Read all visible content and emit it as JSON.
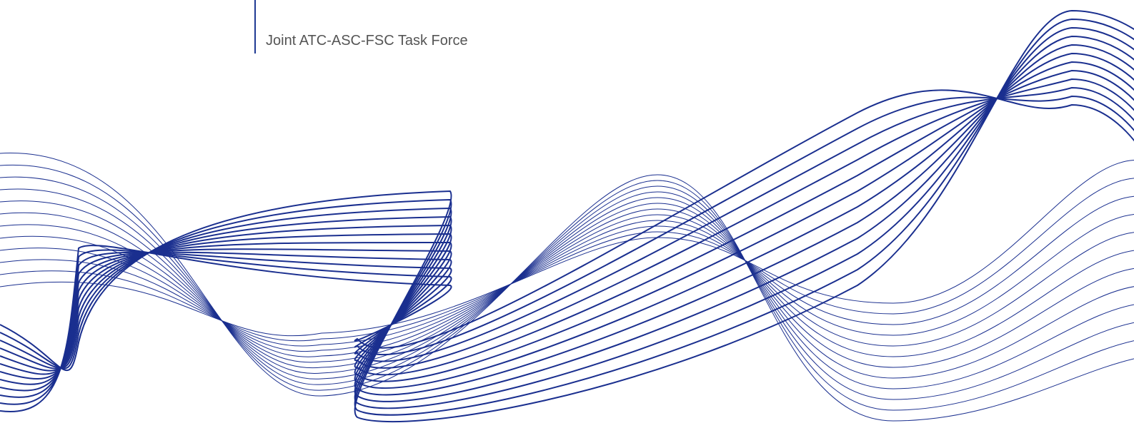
{
  "header": {
    "subtitle": "Joint ATC-ASC-FSC Task Force"
  }
}
